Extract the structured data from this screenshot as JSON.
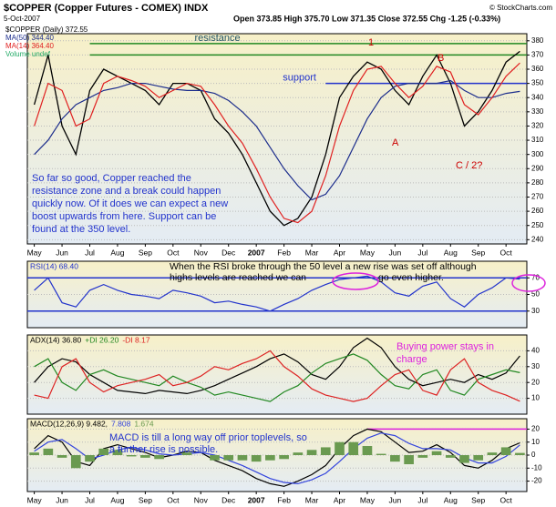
{
  "header": {
    "title": "$COPPER (Copper Futures - COMEX) INDX",
    "date": "5-Oct-2007",
    "quote": "Open 373.85 High 375.70 Low 371.35 Close 372.55 Chg -1.25 (-0.33%)",
    "source": "© StockCharts.com"
  },
  "chart_data": [
    {
      "type": "line",
      "categories": [
        "May",
        null,
        "Jun",
        null,
        "Jul",
        null,
        "Aug",
        null,
        "Sep",
        null,
        "Oct",
        null,
        "Nov",
        null,
        "Dec",
        null,
        "2007",
        null,
        "Feb",
        null,
        "Mar",
        null,
        "Apr",
        null,
        "May",
        null,
        "Jun",
        null,
        "Jul",
        null,
        "Aug",
        null,
        "Sep",
        null,
        "Oct",
        null
      ],
      "series": [
        {
          "name": "$COPPER (Daily) 372.55",
          "color": "#000000",
          "values": [
            335,
            370,
            320,
            300,
            345,
            360,
            355,
            350,
            345,
            335,
            350,
            350,
            345,
            325,
            315,
            300,
            280,
            260,
            250,
            255,
            270,
            300,
            340,
            355,
            365,
            360,
            345,
            335,
            355,
            370,
            350,
            320,
            330,
            345,
            365,
            372.55
          ]
        },
        {
          "name": "MA(50) 344.40",
          "color": "#1c2d8c",
          "values": [
            300,
            310,
            325,
            335,
            340,
            345,
            347,
            350,
            350,
            348,
            346,
            345,
            345,
            343,
            338,
            330,
            320,
            305,
            290,
            278,
            268,
            272,
            285,
            305,
            325,
            340,
            348,
            350,
            350,
            350,
            352,
            345,
            340,
            340,
            343,
            344.4
          ]
        },
        {
          "name": "MA(14) 364.40",
          "color": "#e02020",
          "values": [
            320,
            350,
            345,
            320,
            325,
            350,
            355,
            352,
            348,
            340,
            345,
            350,
            348,
            335,
            320,
            308,
            290,
            270,
            255,
            252,
            260,
            285,
            320,
            345,
            360,
            362,
            350,
            340,
            348,
            362,
            358,
            335,
            328,
            340,
            355,
            364.4
          ]
        }
      ],
      "legend_extra": "Volume undef",
      "ylim": [
        237,
        385
      ],
      "yticks": [
        240,
        250,
        260,
        270,
        280,
        290,
        300,
        310,
        320,
        330,
        340,
        350,
        360,
        370,
        380
      ],
      "grid": true,
      "lines": [
        {
          "label": "resistance",
          "value": 378,
          "from": 4,
          "color": "#228822"
        },
        {
          "value": 370,
          "from": 4,
          "color": "#228822"
        },
        {
          "label": "support",
          "value": 350,
          "from": 21,
          "color": "#2233cc"
        }
      ],
      "annotations": [
        "1",
        "B",
        "A",
        "C / 2?"
      ],
      "text": [
        "So far so good, Copper reached the",
        "resistance zone and a break could happen",
        "quickly now. Of it does we can expect a new",
        "boost upwards from here. Support can be",
        "found at the 350 level."
      ]
    },
    {
      "type": "line",
      "series": [
        {
          "name": "RSI(14) 68.40",
          "color": "#2233cc",
          "values": [
            55,
            70,
            40,
            35,
            55,
            62,
            55,
            50,
            48,
            45,
            55,
            52,
            48,
            40,
            42,
            38,
            35,
            30,
            38,
            45,
            55,
            62,
            68,
            70,
            72,
            65,
            52,
            48,
            60,
            65,
            45,
            35,
            50,
            58,
            70,
            68.4
          ]
        }
      ],
      "ylim": [
        10,
        90
      ],
      "yticks": [
        30,
        50,
        70
      ],
      "grid": true,
      "lines": [
        {
          "value": 70,
          "color": "#2233cc"
        },
        {
          "value": 30,
          "color": "#2233cc"
        }
      ],
      "text": [
        "When the RSI broke through the 50 level a new rise was set off although",
        "highs levels are reached we can",
        "go even higher."
      ]
    },
    {
      "type": "line",
      "series": [
        {
          "name": "ADX(14) 36.80",
          "color": "#000000",
          "values": [
            20,
            30,
            35,
            33,
            25,
            20,
            15,
            14,
            13,
            15,
            14,
            13,
            15,
            18,
            22,
            26,
            30,
            35,
            38,
            33,
            25,
            22,
            30,
            42,
            48,
            42,
            30,
            22,
            18,
            20,
            22,
            20,
            25,
            22,
            26,
            36.8
          ]
        },
        {
          "name": "+DI 26.20",
          "color": "#228822",
          "values": [
            30,
            35,
            20,
            15,
            25,
            28,
            24,
            22,
            20,
            18,
            24,
            20,
            17,
            12,
            14,
            12,
            10,
            8,
            14,
            18,
            26,
            32,
            35,
            38,
            34,
            25,
            18,
            16,
            25,
            28,
            15,
            12,
            22,
            25,
            28,
            26.2
          ]
        },
        {
          "name": "-DI 8.17",
          "color": "#dd2222",
          "values": [
            12,
            10,
            30,
            35,
            20,
            14,
            18,
            20,
            22,
            25,
            18,
            20,
            24,
            30,
            28,
            32,
            35,
            40,
            30,
            24,
            16,
            12,
            10,
            8,
            10,
            18,
            25,
            28,
            15,
            12,
            28,
            35,
            20,
            15,
            12,
            8.17
          ]
        }
      ],
      "ylim": [
        0,
        50
      ],
      "yticks": [
        10,
        20,
        30,
        40
      ],
      "grid": true,
      "text": [
        "Buying power stays in",
        "charge"
      ]
    },
    {
      "type": "line",
      "categories": [
        "May",
        null,
        "Jun",
        null,
        "Jul",
        null,
        "Aug",
        null,
        "Sep",
        null,
        "Oct",
        null,
        "Nov",
        null,
        "Dec",
        null,
        "2007",
        null,
        "Feb",
        null,
        "Mar",
        null,
        "Apr",
        null,
        "May",
        null,
        "Jun",
        null,
        "Jul",
        null,
        "Aug",
        null,
        "Sep",
        null,
        "Oct",
        null
      ],
      "series": [
        {
          "name": "MACD(12,26,9) 9.482,",
          "color": "#000000",
          "values": [
            5,
            15,
            10,
            -5,
            -8,
            5,
            8,
            5,
            2,
            -2,
            0,
            3,
            2,
            -4,
            -8,
            -12,
            -18,
            -22,
            -24,
            -20,
            -15,
            -8,
            5,
            15,
            20,
            18,
            10,
            2,
            3,
            8,
            2,
            -8,
            -10,
            -4,
            5,
            9.482
          ]
        },
        {
          "name": "7.808",
          "color": "#3344dd",
          "values": [
            3,
            10,
            12,
            5,
            -3,
            0,
            4,
            6,
            4,
            1,
            0,
            1,
            2,
            0,
            -4,
            -8,
            -13,
            -18,
            -21,
            -22,
            -19,
            -14,
            -5,
            5,
            13,
            17,
            15,
            9,
            5,
            5,
            4,
            -2,
            -6,
            -6,
            -1,
            7.808
          ]
        },
        {
          "name": "1.674",
          "color": "#6a9a50",
          "type": "bar",
          "values": [
            2,
            5,
            -2,
            -10,
            -5,
            5,
            4,
            -1,
            -2,
            -3,
            0,
            2,
            0,
            -4,
            -4,
            -4,
            -5,
            -4,
            -3,
            2,
            4,
            6,
            10,
            10,
            7,
            1,
            -5,
            -7,
            -2,
            3,
            -2,
            -6,
            -4,
            2,
            6,
            1.674
          ]
        }
      ],
      "ylim": [
        -28,
        28
      ],
      "yticks": [
        -20,
        -10,
        0,
        10,
        20
      ],
      "grid": true,
      "lines": [
        {
          "value": 20,
          "from": 24,
          "color": "#dd22dd"
        }
      ],
      "text": [
        "MACD is till a long way off prior toplevels, so",
        "a further rise is possible."
      ]
    }
  ]
}
